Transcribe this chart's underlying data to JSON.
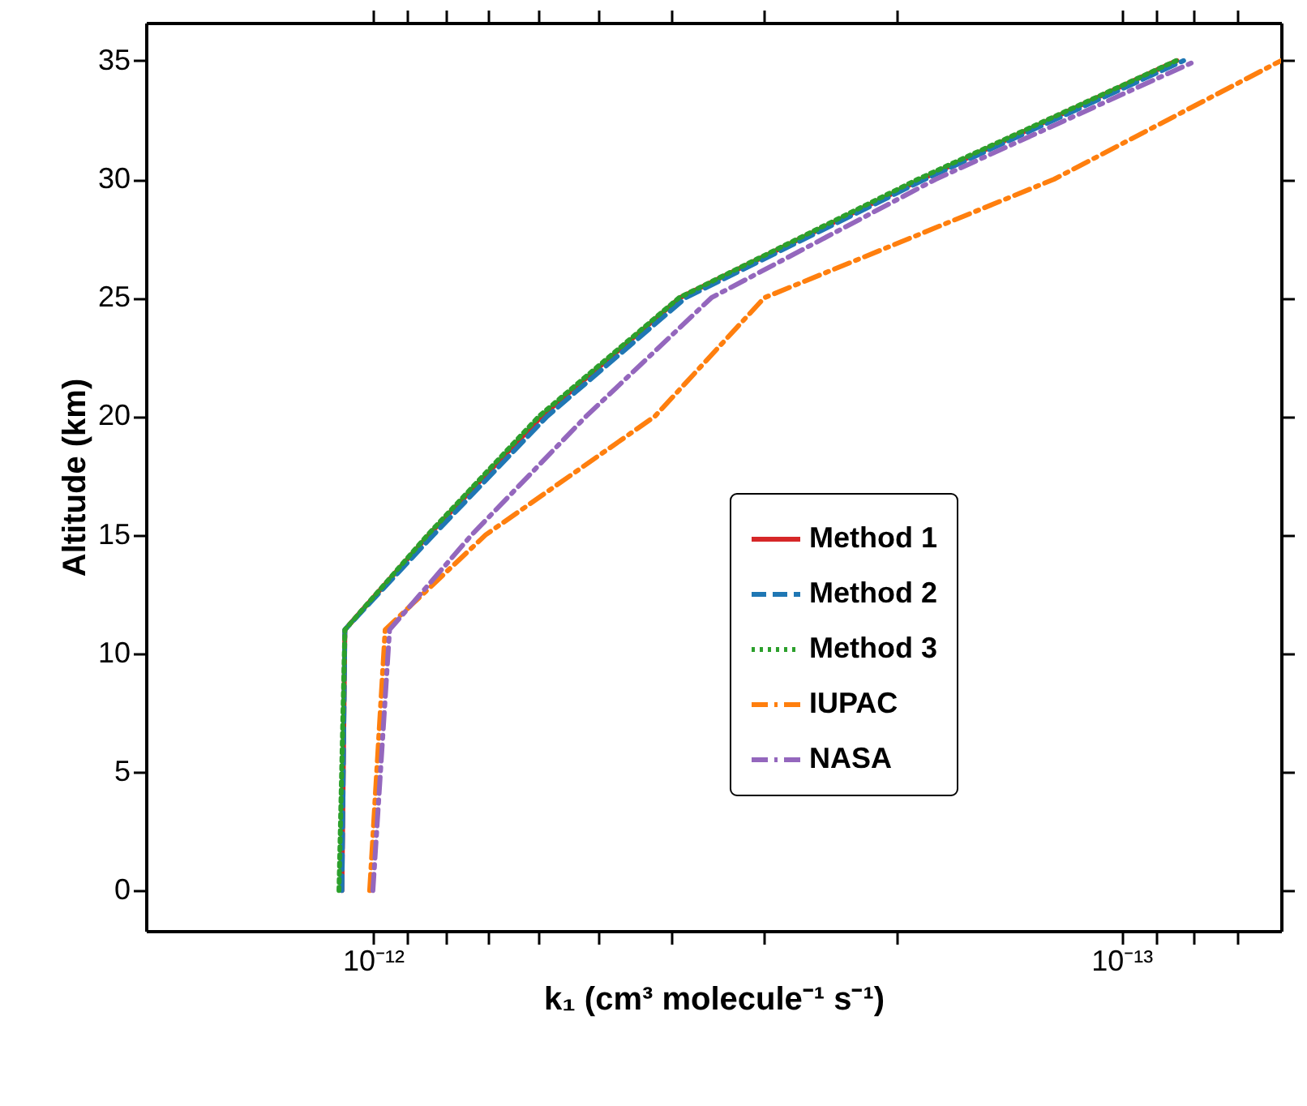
{
  "chart_data": {
    "type": "line",
    "xlabel": "k₁ (cm³ molecule⁻¹ s⁻¹)",
    "ylabel": "Altitude (km)",
    "log": "x",
    "xlim": [
      2.01e-12,
      6.12e-14
    ],
    "xticks": [
      {
        "value": 1e-12,
        "label": "10⁻¹²"
      },
      {
        "value": 9e-13,
        "label": null
      },
      {
        "value": 8e-13,
        "label": null
      },
      {
        "value": 7e-13,
        "label": null
      },
      {
        "value": 6e-13,
        "label": null
      },
      {
        "value": 5e-13,
        "label": null
      },
      {
        "value": 4e-13,
        "label": null
      },
      {
        "value": 3e-13,
        "label": null
      },
      {
        "value": 2e-13,
        "label": null
      },
      {
        "value": 1e-13,
        "label": "10⁻¹³"
      },
      {
        "value": 9e-14,
        "label": null
      },
      {
        "value": 8e-14,
        "label": null
      },
      {
        "value": 7e-14,
        "label": null
      }
    ],
    "ylim": [
      -1.7,
      36.6
    ],
    "yticks": [
      0,
      5,
      10,
      15,
      20,
      25,
      30,
      35
    ],
    "grid": false,
    "legend": "bottom right",
    "marker": "none",
    "series": [
      {
        "name": "Method 1",
        "color": "#d62728",
        "line_style": "solid",
        "x": [
          1.1e-12,
          1.09e-12,
          8.42e-13,
          5.95e-13,
          3.89e-13,
          1.85e-13,
          8.43e-14
        ],
        "values": [
          0,
          11,
          15,
          20,
          25,
          30,
          35
        ]
      },
      {
        "name": "Method 2",
        "color": "#1f77b4",
        "line_style": "dashed",
        "x": [
          1.1e-12,
          1.09e-12,
          8.3e-13,
          5.85e-13,
          3.82e-13,
          1.83e-13,
          8.26e-14
        ],
        "values": [
          0,
          11,
          15,
          20,
          25,
          30,
          35
        ]
      },
      {
        "name": "Method 3",
        "color": "#2ca02c",
        "line_style": "dotted",
        "x": [
          1.11e-12,
          1.09e-12,
          8.45e-13,
          6e-13,
          3.9e-13,
          1.87e-13,
          8.45e-14
        ],
        "values": [
          0,
          11,
          15,
          20,
          25,
          30,
          35
        ]
      },
      {
        "name": "IUPAC",
        "color": "#ff7f0e",
        "line_style": "dashdot",
        "x": [
          1.01e-12,
          9.63e-13,
          7.07e-13,
          4.2e-13,
          3e-13,
          1.23e-13,
          6.12e-14
        ],
        "values": [
          0,
          11,
          15,
          20,
          25,
          30,
          35
        ]
      },
      {
        "name": "NASA",
        "color": "#9467bd",
        "line_style": "dashdot",
        "x": [
          1e-12,
          9.5e-13,
          7.38e-13,
          5.19e-13,
          3.53e-13,
          1.77e-13,
          7.94e-14
        ],
        "values": [
          0,
          11,
          15,
          20,
          25,
          30,
          35
        ]
      }
    ]
  }
}
